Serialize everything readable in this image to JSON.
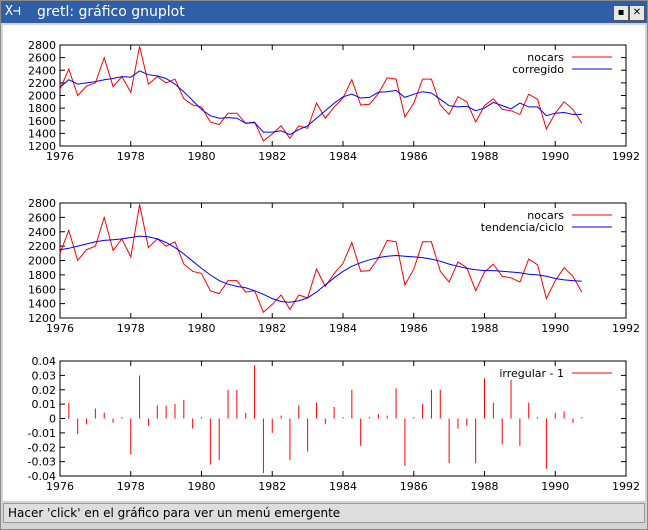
{
  "window": {
    "title": "gretl: gráfico gnuplot",
    "maximize_glyph": "▪",
    "close_glyph": "✕"
  },
  "status": {
    "text": "Hacer 'click' en el gráfico para ver un menú emergente"
  },
  "colors": {
    "series1": "#ff0000",
    "series2": "#0000ff",
    "titlebar": "#2f5fa8"
  },
  "chart_data": [
    {
      "type": "line",
      "xlim": [
        1976,
        1992
      ],
      "ylim": [
        1200,
        2800
      ],
      "xticks": [
        1976,
        1978,
        1980,
        1982,
        1984,
        1986,
        1988,
        1990,
        1992
      ],
      "yticks": [
        1200,
        1400,
        1600,
        1800,
        2000,
        2200,
        2400,
        2600,
        2800
      ],
      "legend_position": "top-right",
      "series": [
        {
          "name": "nocars",
          "color": "#ff0000",
          "x_start": 1976,
          "step": 0.25,
          "values": [
            2100,
            2420,
            2000,
            2150,
            2200,
            2600,
            2140,
            2300,
            2050,
            2780,
            2180,
            2300,
            2200,
            2260,
            1950,
            1850,
            1820,
            1580,
            1540,
            1720,
            1720,
            1560,
            1580,
            1280,
            1390,
            1520,
            1320,
            1520,
            1480,
            1880,
            1640,
            1820,
            1960,
            2250,
            1850,
            1860,
            2030,
            2280,
            2260,
            1660,
            1880,
            2260,
            2260,
            1850,
            1700,
            1980,
            1900,
            1580,
            1840,
            1950,
            1780,
            1760,
            1700,
            2020,
            1940,
            1470,
            1720,
            1900,
            1780,
            1560
          ]
        },
        {
          "name": "corregido",
          "color": "#0000ff",
          "x_start": 1976,
          "step": 0.25,
          "values": [
            2130,
            2250,
            2180,
            2200,
            2220,
            2250,
            2270,
            2300,
            2290,
            2390,
            2330,
            2310,
            2270,
            2180,
            2060,
            1920,
            1780,
            1680,
            1640,
            1650,
            1640,
            1560,
            1570,
            1420,
            1420,
            1440,
            1380,
            1460,
            1520,
            1640,
            1760,
            1880,
            1980,
            2020,
            1960,
            1970,
            2050,
            2060,
            2080,
            1970,
            2020,
            2060,
            2040,
            1940,
            1840,
            1820,
            1830,
            1760,
            1800,
            1890,
            1840,
            1790,
            1880,
            1820,
            1820,
            1680,
            1720,
            1730,
            1700,
            1700
          ]
        }
      ]
    },
    {
      "type": "line",
      "xlim": [
        1976,
        1992
      ],
      "ylim": [
        1200,
        2800
      ],
      "xticks": [
        1976,
        1978,
        1980,
        1982,
        1984,
        1986,
        1988,
        1990,
        1992
      ],
      "yticks": [
        1200,
        1400,
        1600,
        1800,
        2000,
        2200,
        2400,
        2600,
        2800
      ],
      "legend_position": "top-right",
      "series": [
        {
          "name": "nocars",
          "color": "#ff0000",
          "x_start": 1976,
          "step": 0.25,
          "values": [
            2100,
            2420,
            2000,
            2150,
            2200,
            2600,
            2140,
            2300,
            2050,
            2780,
            2180,
            2300,
            2200,
            2260,
            1950,
            1850,
            1820,
            1580,
            1540,
            1720,
            1720,
            1560,
            1580,
            1280,
            1390,
            1520,
            1320,
            1520,
            1480,
            1880,
            1640,
            1820,
            1960,
            2250,
            1850,
            1860,
            2030,
            2280,
            2260,
            1660,
            1880,
            2260,
            2260,
            1850,
            1700,
            1980,
            1900,
            1580,
            1840,
            1950,
            1780,
            1760,
            1700,
            2020,
            1940,
            1470,
            1720,
            1900,
            1780,
            1560
          ]
        },
        {
          "name": "tendencia/ciclo",
          "color": "#0000ff",
          "x_start": 1976,
          "step": 0.25,
          "values": [
            2150,
            2170,
            2200,
            2230,
            2260,
            2280,
            2290,
            2300,
            2320,
            2340,
            2330,
            2300,
            2250,
            2180,
            2090,
            1990,
            1890,
            1800,
            1720,
            1670,
            1640,
            1620,
            1580,
            1530,
            1470,
            1430,
            1420,
            1440,
            1480,
            1560,
            1660,
            1760,
            1850,
            1920,
            1970,
            2010,
            2040,
            2060,
            2070,
            2060,
            2050,
            2040,
            2020,
            1990,
            1950,
            1920,
            1890,
            1870,
            1860,
            1860,
            1850,
            1840,
            1830,
            1810,
            1800,
            1780,
            1750,
            1730,
            1720,
            1710
          ]
        }
      ]
    },
    {
      "type": "bar",
      "xlim": [
        1976,
        1992
      ],
      "ylim": [
        -0.04,
        0.04
      ],
      "xticks": [
        1976,
        1978,
        1980,
        1982,
        1984,
        1986,
        1988,
        1990,
        1992
      ],
      "yticks": [
        -0.04,
        -0.03,
        -0.02,
        -0.01,
        0,
        0.01,
        0.02,
        0.03,
        0.04
      ],
      "legend_position": "top-right",
      "series": [
        {
          "name": "irregular - 1",
          "color": "#ff0000",
          "x_start": 1976,
          "step": 0.25,
          "values": [
            -0.001,
            0.011,
            -0.011,
            -0.004,
            0.007,
            0.004,
            -0.003,
            0.001,
            -0.025,
            0.03,
            -0.005,
            0.009,
            0.009,
            0.01,
            0.013,
            -0.007,
            0.001,
            -0.032,
            -0.029,
            0.02,
            0.02,
            0.004,
            0.037,
            -0.038,
            -0.01,
            0.002,
            -0.029,
            0.009,
            -0.023,
            0.011,
            -0.004,
            0.008,
            0.001,
            0.02,
            -0.019,
            0.001,
            0.003,
            0.002,
            0.021,
            -0.033,
            0.001,
            0.01,
            0.02,
            0.02,
            -0.031,
            -0.007,
            -0.005,
            -0.031,
            0.028,
            0.011,
            -0.018,
            0.027,
            -0.019,
            0.011,
            0.001,
            -0.035,
            0.004,
            0.005,
            -0.003,
            0.001
          ]
        }
      ]
    }
  ]
}
